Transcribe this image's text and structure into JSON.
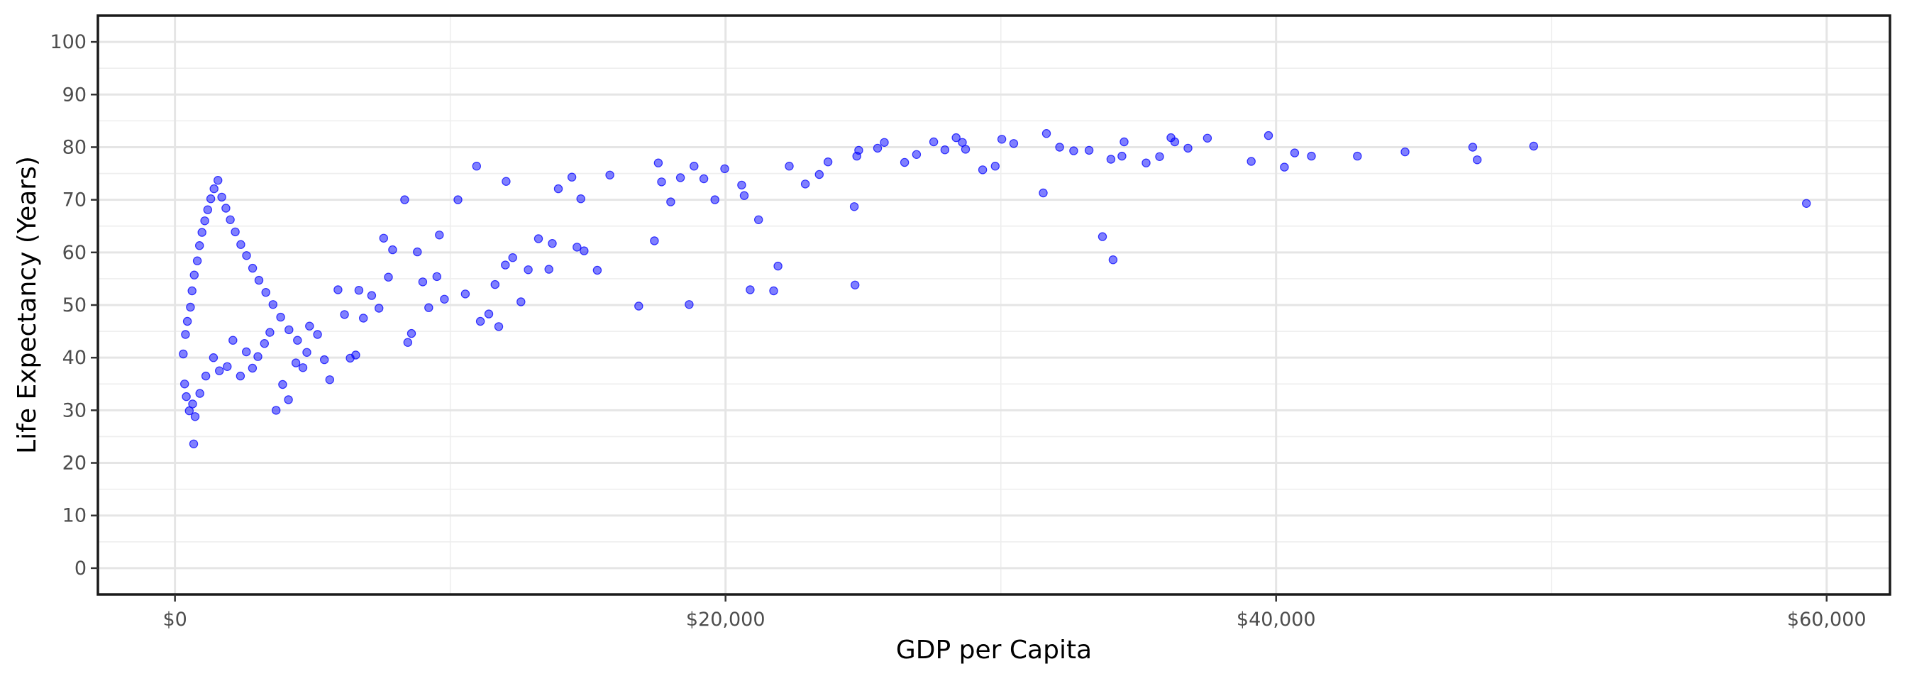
{
  "chart_data": {
    "type": "scatter",
    "title": "",
    "xlabel": "GDP per Capita",
    "ylabel": "Life Expectancy (Years)",
    "xlim": [
      -2800,
      62300
    ],
    "ylim": [
      -5,
      105
    ],
    "x_ticks": [
      0,
      20000,
      40000,
      60000
    ],
    "x_tick_labels": [
      "$0",
      "$20,000",
      "$40,000",
      "$60,000"
    ],
    "y_ticks": [
      0,
      10,
      20,
      30,
      40,
      50,
      60,
      70,
      80,
      90,
      100
    ],
    "y_tick_labels": [
      "0",
      "10",
      "20",
      "30",
      "40",
      "50",
      "60",
      "70",
      "80",
      "90",
      "100"
    ],
    "grid": true,
    "point_color": "#0000ff",
    "point_alpha": 0.5,
    "series": [
      {
        "values": [
          [
            59265,
            69.3
          ],
          [
            49357,
            80.2
          ],
          [
            47307,
            77.6
          ],
          [
            47143,
            80.0
          ],
          [
            44684,
            79.1
          ],
          [
            42952,
            78.3
          ],
          [
            41283,
            78.3
          ],
          [
            40676,
            78.9
          ],
          [
            40300,
            76.2
          ],
          [
            39724,
            82.2
          ],
          [
            39097,
            77.3
          ],
          [
            37506,
            81.7
          ],
          [
            36798,
            79.8
          ],
          [
            36319,
            81.0
          ],
          [
            36180,
            81.8
          ],
          [
            35767,
            78.2
          ],
          [
            35278,
            77.0
          ],
          [
            34480,
            81.0
          ],
          [
            34077,
            58.6
          ],
          [
            33692,
            63.0
          ],
          [
            34000,
            77.7
          ],
          [
            34400,
            78.3
          ],
          [
            33207,
            79.4
          ],
          [
            32647,
            79.3
          ],
          [
            32136,
            80.0
          ],
          [
            31656,
            82.6
          ],
          [
            31540,
            71.3
          ],
          [
            30470,
            80.7
          ],
          [
            30035,
            81.5
          ],
          [
            29796,
            76.4
          ],
          [
            29341,
            75.7
          ],
          [
            28718,
            79.6
          ],
          [
            28604,
            80.9
          ],
          [
            28377,
            81.8
          ],
          [
            27968,
            79.5
          ],
          [
            27561,
            81.0
          ],
          [
            26938,
            78.6
          ],
          [
            26505,
            77.1
          ],
          [
            25768,
            80.9
          ],
          [
            25523,
            79.8
          ],
          [
            24837,
            79.4
          ],
          [
            24769,
            78.3
          ],
          [
            24704,
            53.8
          ],
          [
            24675,
            68.7
          ],
          [
            23723,
            77.2
          ],
          [
            23404,
            74.8
          ],
          [
            22898,
            73.0
          ],
          [
            22316,
            76.4
          ],
          [
            21905,
            57.4
          ],
          [
            21748,
            52.7
          ],
          [
            21198,
            66.2
          ],
          [
            20896,
            52.9
          ],
          [
            20677,
            70.8
          ],
          [
            20586,
            72.8
          ],
          [
            19970,
            75.9
          ],
          [
            19614,
            70.0
          ],
          [
            19211,
            74.0
          ],
          [
            18856,
            76.4
          ],
          [
            18679,
            50.1
          ],
          [
            18362,
            74.2
          ],
          [
            18008,
            69.6
          ],
          [
            17675,
            73.4
          ],
          [
            17558,
            77.0
          ],
          [
            17415,
            62.2
          ],
          [
            16846,
            49.8
          ],
          [
            15798,
            74.7
          ],
          [
            15342,
            56.6
          ],
          [
            14861,
            60.3
          ],
          [
            14743,
            70.2
          ],
          [
            14605,
            61.0
          ],
          [
            14417,
            74.3
          ],
          [
            13926,
            72.1
          ],
          [
            13707,
            61.7
          ],
          [
            13582,
            56.8
          ],
          [
            13205,
            62.6
          ],
          [
            12834,
            56.7
          ],
          [
            12569,
            50.6
          ],
          [
            12270,
            59.0
          ],
          [
            12029,
            73.5
          ],
          [
            12001,
            57.6
          ],
          [
            11762,
            45.9
          ],
          [
            11626,
            53.9
          ],
          [
            11400,
            48.3
          ],
          [
            11094,
            46.9
          ],
          [
            10956,
            76.4
          ],
          [
            10547,
            52.1
          ],
          [
            10280,
            70.0
          ],
          [
            9786,
            51.1
          ],
          [
            9604,
            63.3
          ],
          [
            9514,
            55.4
          ],
          [
            9218,
            49.5
          ],
          [
            9000,
            54.4
          ],
          [
            8805,
            60.1
          ],
          [
            8591,
            44.6
          ],
          [
            8457,
            42.9
          ],
          [
            8344,
            70.0
          ],
          [
            7906,
            60.5
          ],
          [
            7754,
            55.3
          ],
          [
            7582,
            62.7
          ],
          [
            7411,
            49.4
          ],
          [
            7145,
            51.8
          ],
          [
            6845,
            47.5
          ],
          [
            6682,
            52.8
          ],
          [
            6565,
            40.5
          ],
          [
            6364,
            39.9
          ],
          [
            6158,
            48.2
          ],
          [
            5922,
            52.9
          ],
          [
            5622,
            35.8
          ],
          [
            5426,
            39.6
          ],
          [
            5178,
            44.4
          ],
          [
            4889,
            46.0
          ],
          [
            4648,
            38.1
          ],
          [
            4392,
            39.0
          ],
          [
            4123,
            32.0
          ],
          [
            3910,
            34.9
          ],
          [
            3674,
            30.0
          ],
          [
            3446,
            44.8
          ],
          [
            3250,
            42.7
          ],
          [
            3012,
            40.2
          ],
          [
            2816,
            38.0
          ],
          [
            2592,
            41.1
          ],
          [
            2377,
            36.5
          ],
          [
            2104,
            43.3
          ],
          [
            1897,
            38.3
          ],
          [
            1612,
            37.5
          ],
          [
            1398,
            40.0
          ],
          [
            1120,
            36.5
          ],
          [
            903,
            33.2
          ],
          [
            730,
            28.8
          ],
          [
            640,
            31.2
          ],
          [
            520,
            29.9
          ],
          [
            410,
            32.6
          ],
          [
            350,
            35.0
          ],
          [
            680,
            23.6
          ],
          [
            300,
            40.7
          ],
          [
            380,
            44.4
          ],
          [
            450,
            46.9
          ],
          [
            560,
            49.6
          ],
          [
            620,
            52.7
          ],
          [
            700,
            55.7
          ],
          [
            810,
            58.4
          ],
          [
            890,
            61.3
          ],
          [
            980,
            63.8
          ],
          [
            1080,
            66.0
          ],
          [
            1190,
            68.1
          ],
          [
            1300,
            70.2
          ],
          [
            1420,
            72.1
          ],
          [
            1560,
            73.7
          ],
          [
            1700,
            70.5
          ],
          [
            1850,
            68.4
          ],
          [
            2010,
            66.2
          ],
          [
            2190,
            63.9
          ],
          [
            2390,
            61.5
          ],
          [
            2600,
            59.4
          ],
          [
            2820,
            57.0
          ],
          [
            3050,
            54.7
          ],
          [
            3300,
            52.4
          ],
          [
            3560,
            50.1
          ],
          [
            3840,
            47.7
          ],
          [
            4140,
            45.3
          ],
          [
            4450,
            43.3
          ],
          [
            4790,
            41.0
          ]
        ]
      }
    ]
  }
}
